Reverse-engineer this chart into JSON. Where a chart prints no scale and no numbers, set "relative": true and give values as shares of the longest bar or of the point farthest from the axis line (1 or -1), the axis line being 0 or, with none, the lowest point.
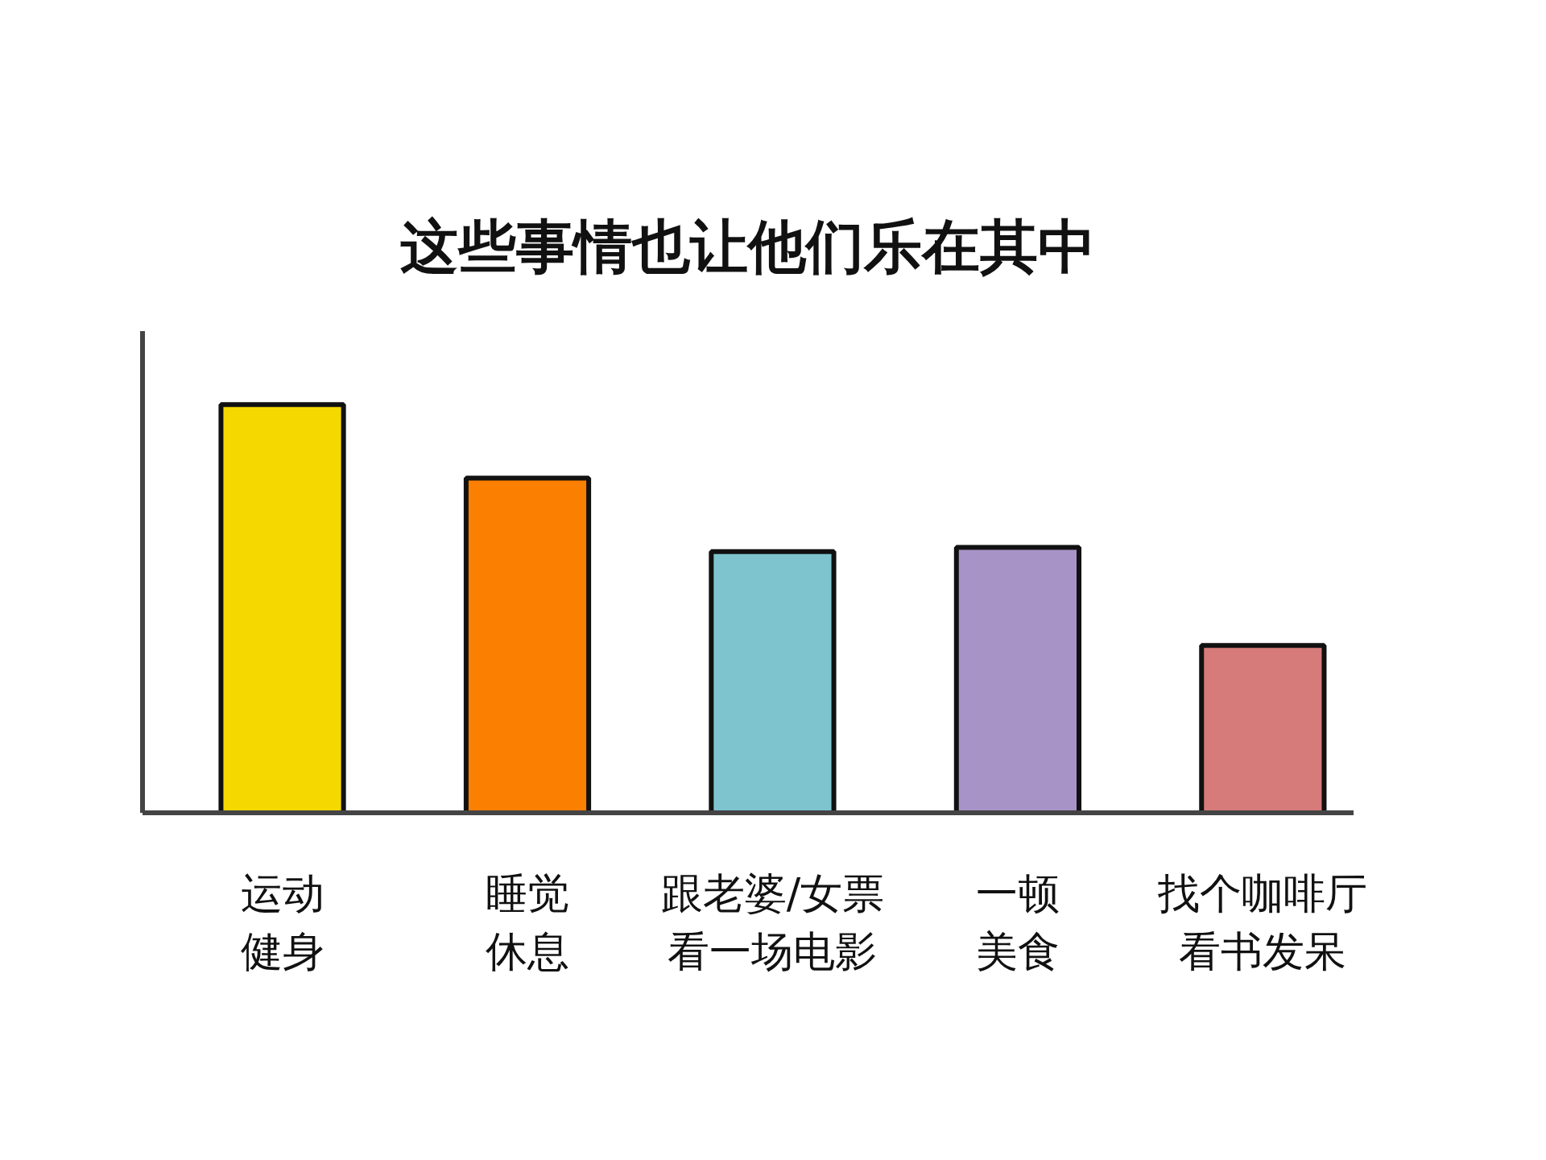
{
  "chart_data": {
    "type": "bar",
    "title": "这些事情也让他们乐在其中",
    "categories": [
      "运动健身",
      "睡觉休息",
      "跟老婆/女票看一场电影",
      "一顿美食",
      "找个咖啡厅看书发呆"
    ],
    "values": [
      1,
      0.82,
      0.64,
      0.65,
      0.41
    ],
    "colors": [
      "#f5d800",
      "#fb7f00",
      "#7dc4cf",
      "#a793c6",
      "#d67b7a"
    ],
    "relative": true
  }
}
